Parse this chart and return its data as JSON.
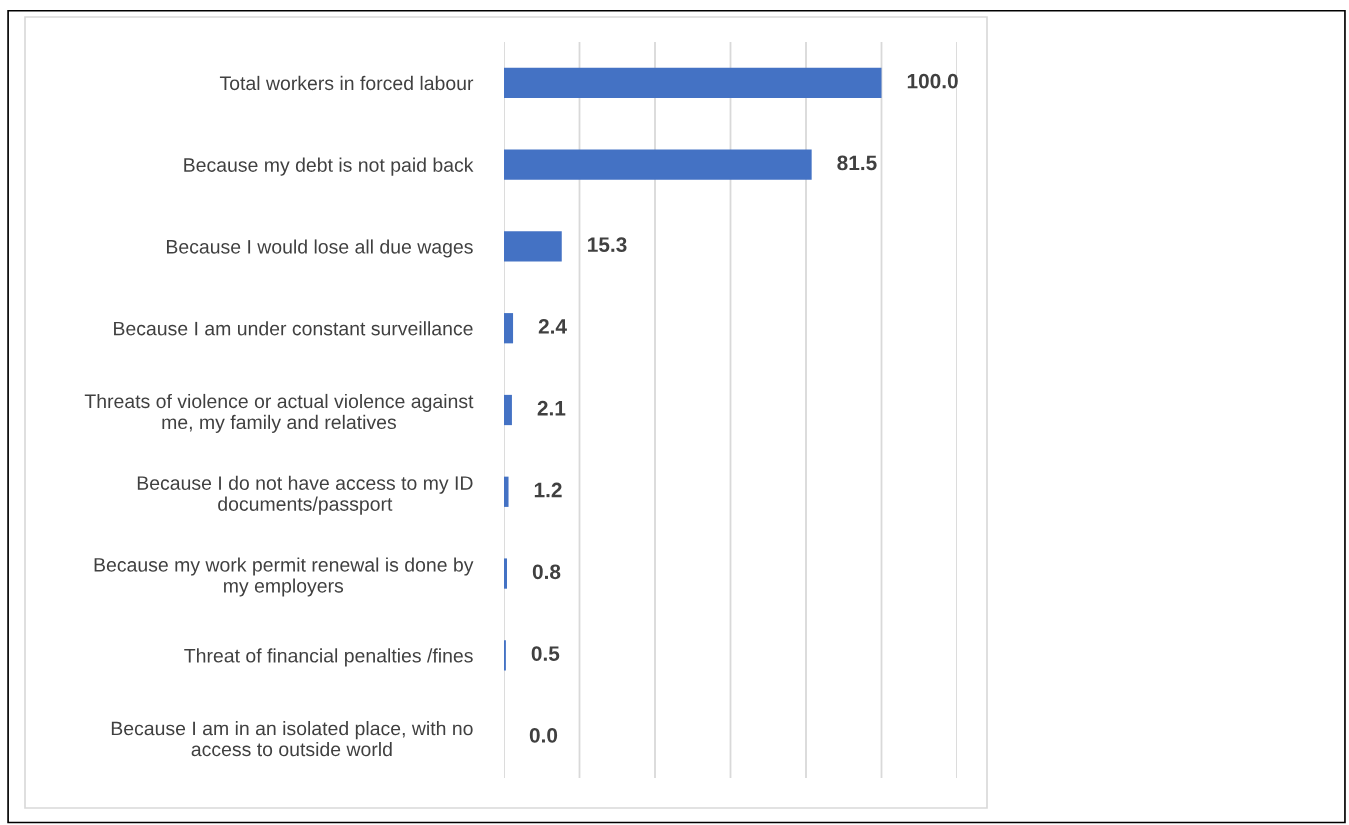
{
  "chart_data": {
    "type": "bar",
    "orientation": "horizontal",
    "categories": [
      "Total workers in forced labour",
      "Because my debt is not paid back",
      "Because I would lose all due wages",
      "Because I am under constant surveillance",
      "Threats of violence or actual violence against\nme, my family and relatives",
      "Because I do not have access to my ID\ndocuments/passport",
      "Because my work permit renewal is done by\nmy employers",
      "Threat of financial penalties /fines",
      "Because I am in an isolated place, with no\naccess to outside world"
    ],
    "values": [
      100.0,
      81.5,
      15.3,
      2.4,
      2.1,
      1.2,
      0.8,
      0.5,
      0.0
    ],
    "value_labels": [
      "100.0",
      "81.5",
      "15.3",
      "2.4",
      "2.1",
      "1.2",
      "0.8",
      "0.5",
      "0.0"
    ],
    "color": "#4472c4",
    "xlim": [
      0,
      120
    ],
    "xticks": [
      {
        "value": 0,
        "label": null
      },
      {
        "value": 20,
        "label": null
      },
      {
        "value": 40,
        "label": null
      },
      {
        "value": 60,
        "label": null
      },
      {
        "value": 80,
        "label": null
      },
      {
        "value": 100,
        "label": null
      },
      {
        "value": 120,
        "label": null
      }
    ],
    "tick_labels": "y",
    "grid": "x",
    "legend": false
  }
}
